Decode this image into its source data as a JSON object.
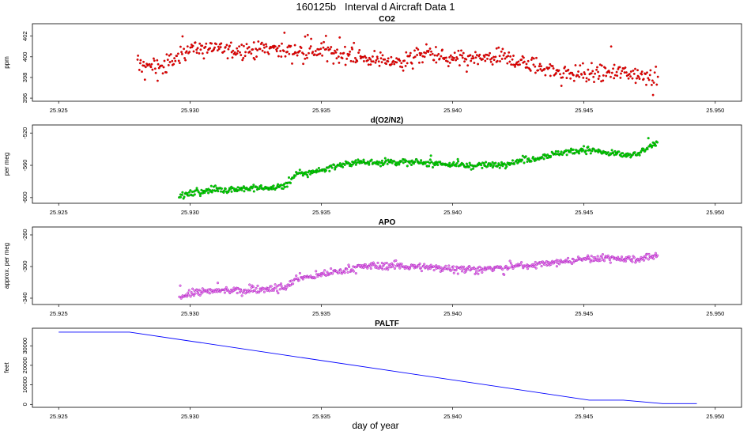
{
  "figure": {
    "title": "160125b   Interval d Aircraft Data 1",
    "xlabel": "day of year"
  },
  "colors": {
    "co2": "#ee0000",
    "o2n2": "#00dd00",
    "apo": "#ee82ee",
    "paltf": "#0000ff"
  },
  "chart_data": [
    {
      "type": "scatter",
      "title": "CO2",
      "ylabel": "ppm",
      "xlim": [
        25.924,
        25.951
      ],
      "ylim": [
        395.7,
        403.2
      ],
      "xticks": [
        "25.925",
        "25.930",
        "25.935",
        "25.940",
        "25.945",
        "25.950"
      ],
      "yticks": [
        "396",
        "398",
        "400",
        "402"
      ],
      "series": [
        {
          "name": "CO2",
          "x": [
            25.928,
            25.929,
            25.93,
            25.931,
            25.932,
            25.933,
            25.934,
            25.935,
            25.936,
            25.937,
            25.938,
            25.939,
            25.94,
            25.941,
            25.942,
            25.943,
            25.944,
            25.945,
            25.946,
            25.947,
            25.9478
          ],
          "y": [
            399.3,
            399.0,
            400.9,
            400.8,
            400.6,
            400.9,
            400.5,
            400.6,
            400.1,
            399.8,
            399.5,
            400.3,
            399.7,
            399.8,
            399.9,
            399.2,
            398.6,
            398.3,
            398.5,
            398.4,
            397.8
          ],
          "scatter_sd": 0.75
        }
      ]
    },
    {
      "type": "scatter",
      "title": "d(O2/N2)",
      "ylabel": "per meg",
      "xlim": [
        25.924,
        25.951
      ],
      "ylim": [
        -607,
        -510
      ],
      "xticks": [
        "25.925",
        "25.930",
        "25.935",
        "25.940",
        "25.945",
        "25.950"
      ],
      "yticks": [
        "-600",
        "-560",
        "-520"
      ],
      "series": [
        {
          "name": "d(O2/N2)",
          "x": [
            25.9296,
            25.93,
            25.931,
            25.932,
            25.933,
            25.9337,
            25.934,
            25.935,
            25.936,
            25.937,
            25.938,
            25.939,
            25.94,
            25.941,
            25.942,
            25.943,
            25.944,
            25.945,
            25.946,
            25.947,
            25.9478
          ],
          "y": [
            -598,
            -595,
            -590,
            -589,
            -588,
            -585,
            -572,
            -566,
            -557,
            -556,
            -556,
            -557,
            -559,
            -561,
            -558,
            -552,
            -545,
            -540,
            -546,
            -547,
            -532
          ],
          "scatter_sd": 3.5
        }
      ]
    },
    {
      "type": "scatter",
      "title": "APO",
      "ylabel": "approx. per meg",
      "xlim": [
        25.924,
        25.951
      ],
      "ylim": [
        -348,
        -250
      ],
      "xticks": [
        "25.925",
        "25.930",
        "25.935",
        "25.940",
        "25.945",
        "25.950"
      ],
      "yticks": [
        "-340",
        "-300",
        "-260"
      ],
      "series": [
        {
          "name": "APO",
          "x": [
            25.9296,
            25.93,
            25.931,
            25.932,
            25.933,
            25.9337,
            25.934,
            25.935,
            25.936,
            25.937,
            25.938,
            25.939,
            25.94,
            25.941,
            25.942,
            25.943,
            25.944,
            25.945,
            25.946,
            25.947,
            25.9478
          ],
          "y": [
            -338,
            -333,
            -331,
            -330,
            -328,
            -326,
            -316,
            -311,
            -303,
            -299,
            -299,
            -301,
            -302,
            -304,
            -301,
            -298,
            -295,
            -290,
            -289,
            -291,
            -286
          ],
          "scatter_sd": 4
        }
      ]
    },
    {
      "type": "line",
      "title": "PALTF",
      "ylabel": "feet",
      "xlim": [
        25.924,
        25.951
      ],
      "ylim": [
        -1500,
        39000
      ],
      "xticks": [
        "25.925",
        "25.930",
        "25.935",
        "25.940",
        "25.945",
        "25.950"
      ],
      "yticks": [
        "0",
        "10000",
        "20000",
        "30000"
      ],
      "series": [
        {
          "name": "PALTF",
          "x": [
            25.925,
            25.9277,
            25.9452,
            25.9465,
            25.948,
            25.949,
            25.9493
          ],
          "y": [
            37000,
            37000,
            2200,
            2200,
            400,
            400,
            400
          ]
        }
      ]
    }
  ]
}
